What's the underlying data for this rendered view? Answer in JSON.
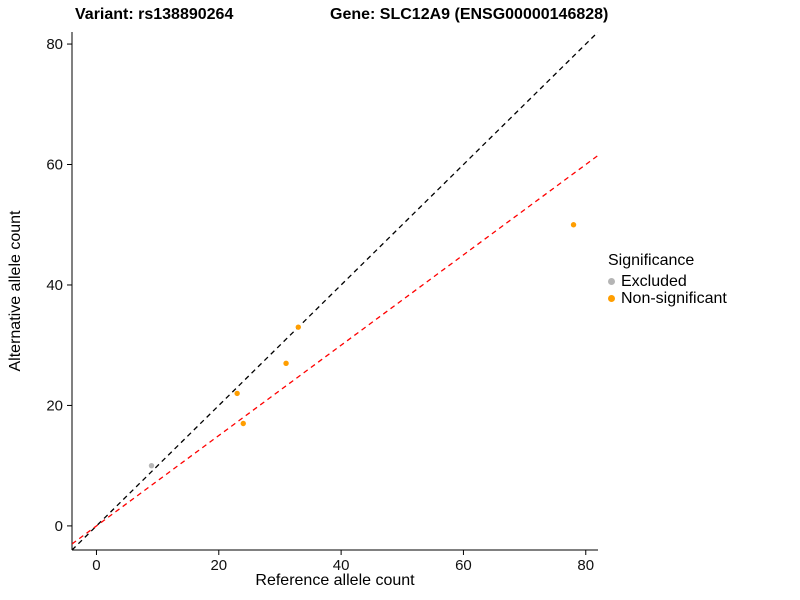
{
  "titles": {
    "left": "Variant: rs138890264",
    "right": "Gene: SLC12A9 (ENSG00000146828)"
  },
  "chart_data": {
    "type": "scatter",
    "title": "",
    "xlabel": "Reference allele count",
    "ylabel": "Alternative allele count",
    "xlim": [
      -4,
      82
    ],
    "ylim": [
      -4,
      82
    ],
    "xticks": [
      0,
      20,
      40,
      60,
      80
    ],
    "yticks": [
      0,
      20,
      40,
      60,
      80
    ],
    "grid": false,
    "series": [
      {
        "name": "Excluded",
        "color": "#b5b5b5",
        "points": [
          {
            "x": 9,
            "y": 10
          }
        ]
      },
      {
        "name": "Non-significant",
        "color": "#ff9e00",
        "points": [
          {
            "x": 23,
            "y": 22
          },
          {
            "x": 24,
            "y": 17
          },
          {
            "x": 31,
            "y": 27
          },
          {
            "x": 33,
            "y": 33
          },
          {
            "x": 78,
            "y": 50
          }
        ]
      }
    ],
    "lines": [
      {
        "name": "identity-line",
        "color": "#000000",
        "dashed": true,
        "slope": 1,
        "intercept": 0
      },
      {
        "name": "expected-ratio-line",
        "color": "#ff0000",
        "dashed": true,
        "slope": 0.75,
        "intercept": 0
      }
    ],
    "legend": {
      "title": "Significance",
      "position": "right",
      "entries": [
        {
          "label": "Excluded",
          "color": "#b5b5b5"
        },
        {
          "label": "Non-significant",
          "color": "#ff9e00"
        }
      ]
    }
  }
}
